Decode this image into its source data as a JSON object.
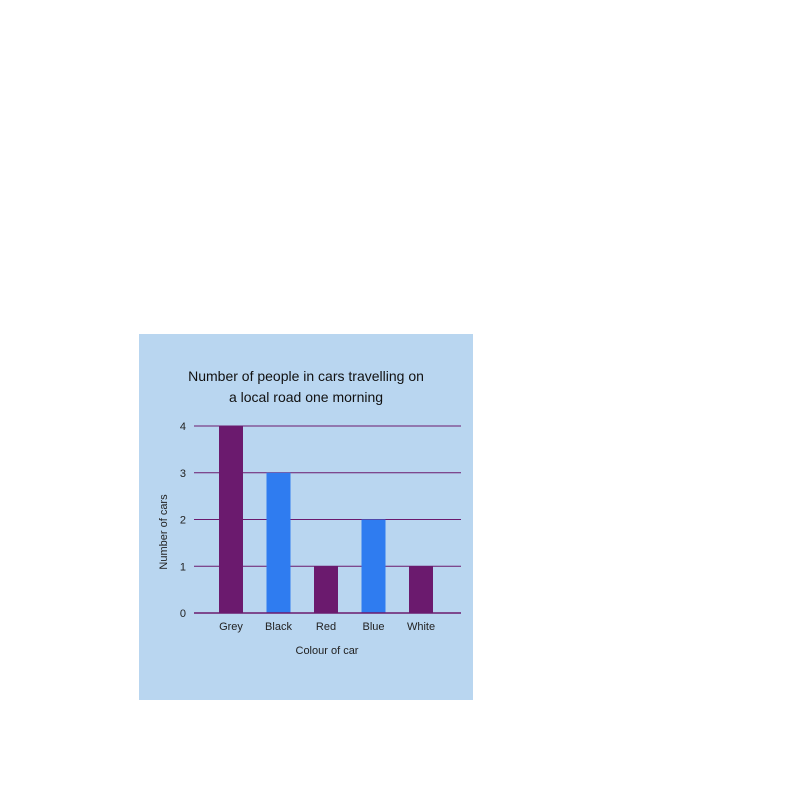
{
  "chart_data": {
    "type": "bar",
    "title_lines": [
      "Number of people in cars travelling on",
      "a local road one morning"
    ],
    "categories": [
      "Grey",
      "Black",
      "Red",
      "Blue",
      "White"
    ],
    "values": [
      4,
      3,
      1,
      2,
      1
    ],
    "bar_colors": [
      "#6b1a6e",
      "#2f7cf0",
      "#6b1a6e",
      "#2f7cf0",
      "#6b1a6e"
    ],
    "xlabel": "Colour of car",
    "ylabel": "Number of cars",
    "ylim": [
      0,
      4
    ],
    "yticks": [
      0,
      1,
      2,
      3,
      4
    ],
    "grid": true,
    "grid_color": "#6b1a6e",
    "background": "#b9d6f0"
  }
}
